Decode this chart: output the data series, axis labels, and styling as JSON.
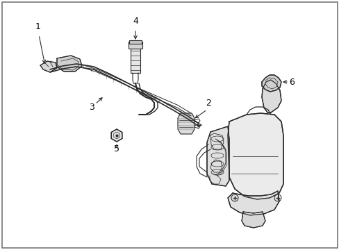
{
  "bg_color": "#ffffff",
  "line_color": "#2a2a2a",
  "label_color": "#000000",
  "fig_width": 4.89,
  "fig_height": 3.6,
  "dpi": 100,
  "border_color": "#888888"
}
